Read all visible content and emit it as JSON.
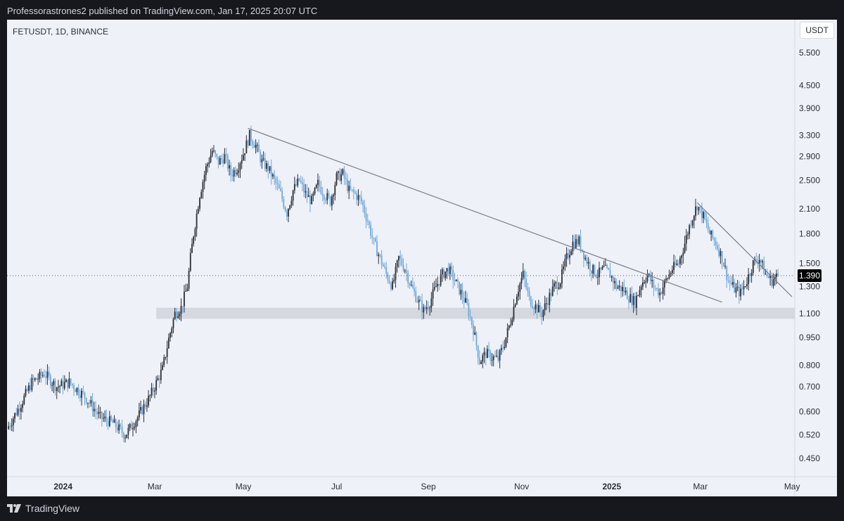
{
  "publish_line": "Professorastrones2 published on TradingView.com, Jan 17, 2025 20:07 UTC",
  "footer": {
    "brand": "TradingView",
    "logo_icon": "tradingview-logo-icon"
  },
  "chart_data": {
    "type": "candlestick",
    "symbol": "FETUSDT, 1D, BINANCE",
    "currency": "USDT",
    "scale": "log",
    "last_price": "1.390",
    "y_ticks": [
      "5.500",
      "4.500",
      "3.900",
      "3.300",
      "2.900",
      "2.500",
      "2.100",
      "1.800",
      "1.500",
      "1.300",
      "1.100",
      "0.950",
      "0.800",
      "0.700",
      "0.600",
      "0.520",
      "0.450"
    ],
    "x_ticks": [
      {
        "label": "2024",
        "bold": true
      },
      {
        "label": "Mar",
        "bold": false
      },
      {
        "label": "May",
        "bold": false
      },
      {
        "label": "Jul",
        "bold": false
      },
      {
        "label": "Sep",
        "bold": false
      },
      {
        "label": "Nov",
        "bold": false
      },
      {
        "label": "2025",
        "bold": true
      },
      {
        "label": "Mar",
        "bold": false
      },
      {
        "label": "May",
        "bold": false
      }
    ],
    "colors": {
      "up": "#2a2e39",
      "down": "#6fa8dc",
      "trendline": "#7a7e88",
      "zone": "#d2d5db",
      "price_tag": "#000000"
    },
    "price_path": [
      [
        0,
        0.54
      ],
      [
        8,
        0.62
      ],
      [
        16,
        0.72
      ],
      [
        24,
        0.76
      ],
      [
        32,
        0.7
      ],
      [
        40,
        0.72
      ],
      [
        50,
        0.66
      ],
      [
        60,
        0.58
      ],
      [
        68,
        0.56
      ],
      [
        76,
        0.52
      ],
      [
        84,
        0.58
      ],
      [
        92,
        0.66
      ],
      [
        100,
        0.78
      ],
      [
        104,
        0.94
      ],
      [
        108,
        1.1
      ],
      [
        112,
        1.14
      ],
      [
        116,
        1.3
      ],
      [
        118,
        1.55
      ],
      [
        120,
        1.8
      ],
      [
        124,
        2.3
      ],
      [
        128,
        2.7
      ],
      [
        132,
        3.0
      ],
      [
        136,
        2.8
      ],
      [
        140,
        2.9
      ],
      [
        144,
        2.6
      ],
      [
        148,
        2.7
      ],
      [
        152,
        2.95
      ],
      [
        156,
        3.3
      ],
      [
        160,
        3.1
      ],
      [
        164,
        2.8
      ],
      [
        168,
        2.7
      ],
      [
        172,
        2.5
      ],
      [
        176,
        2.3
      ],
      [
        180,
        2.05
      ],
      [
        184,
        2.35
      ],
      [
        188,
        2.5
      ],
      [
        192,
        2.3
      ],
      [
        196,
        2.2
      ],
      [
        200,
        2.45
      ],
      [
        204,
        2.3
      ],
      [
        208,
        2.2
      ],
      [
        212,
        2.55
      ],
      [
        216,
        2.6
      ],
      [
        220,
        2.35
      ],
      [
        224,
        2.3
      ],
      [
        228,
        2.2
      ],
      [
        232,
        1.95
      ],
      [
        236,
        1.7
      ],
      [
        240,
        1.55
      ],
      [
        244,
        1.4
      ],
      [
        248,
        1.3
      ],
      [
        252,
        1.55
      ],
      [
        256,
        1.45
      ],
      [
        260,
        1.3
      ],
      [
        264,
        1.2
      ],
      [
        268,
        1.12
      ],
      [
        272,
        1.18
      ],
      [
        276,
        1.3
      ],
      [
        280,
        1.4
      ],
      [
        284,
        1.45
      ],
      [
        288,
        1.35
      ],
      [
        292,
        1.25
      ],
      [
        296,
        1.15
      ],
      [
        300,
        1.0
      ],
      [
        304,
        0.82
      ],
      [
        308,
        0.86
      ],
      [
        312,
        0.84
      ],
      [
        316,
        0.83
      ],
      [
        320,
        0.92
      ],
      [
        324,
        1.05
      ],
      [
        328,
        1.25
      ],
      [
        332,
        1.4
      ],
      [
        336,
        1.2
      ],
      [
        340,
        1.15
      ],
      [
        344,
        1.1
      ],
      [
        348,
        1.2
      ],
      [
        352,
        1.3
      ],
      [
        356,
        1.35
      ],
      [
        360,
        1.55
      ],
      [
        364,
        1.7
      ],
      [
        368,
        1.72
      ],
      [
        372,
        1.55
      ],
      [
        376,
        1.45
      ],
      [
        380,
        1.4
      ],
      [
        384,
        1.45
      ],
      [
        388,
        1.4
      ],
      [
        392,
        1.3
      ],
      [
        396,
        1.28
      ],
      [
        400,
        1.22
      ],
      [
        404,
        1.18
      ],
      [
        408,
        1.32
      ],
      [
        412,
        1.4
      ],
      [
        416,
        1.3
      ],
      [
        420,
        1.25
      ],
      [
        424,
        1.35
      ],
      [
        428,
        1.45
      ],
      [
        432,
        1.5
      ],
      [
        436,
        1.7
      ],
      [
        440,
        1.95
      ],
      [
        444,
        2.15
      ],
      [
        448,
        2.0
      ],
      [
        452,
        1.8
      ],
      [
        456,
        1.7
      ],
      [
        460,
        1.55
      ],
      [
        464,
        1.35
      ],
      [
        468,
        1.28
      ],
      [
        472,
        1.25
      ],
      [
        476,
        1.35
      ],
      [
        480,
        1.5
      ],
      [
        484,
        1.55
      ],
      [
        488,
        1.4
      ],
      [
        492,
        1.35
      ],
      [
        496,
        1.39
      ]
    ],
    "trendlines": [
      {
        "name": "upper-descending",
        "from": [
          155,
          3.45
        ],
        "to": [
          460,
          1.18
        ]
      },
      {
        "name": "recent-descending",
        "from": [
          444,
          2.18
        ],
        "to": [
          505,
          1.22
        ]
      }
    ],
    "support_zone": {
      "from": 96,
      "to": 507,
      "low": 1.065,
      "high": 1.14
    }
  }
}
